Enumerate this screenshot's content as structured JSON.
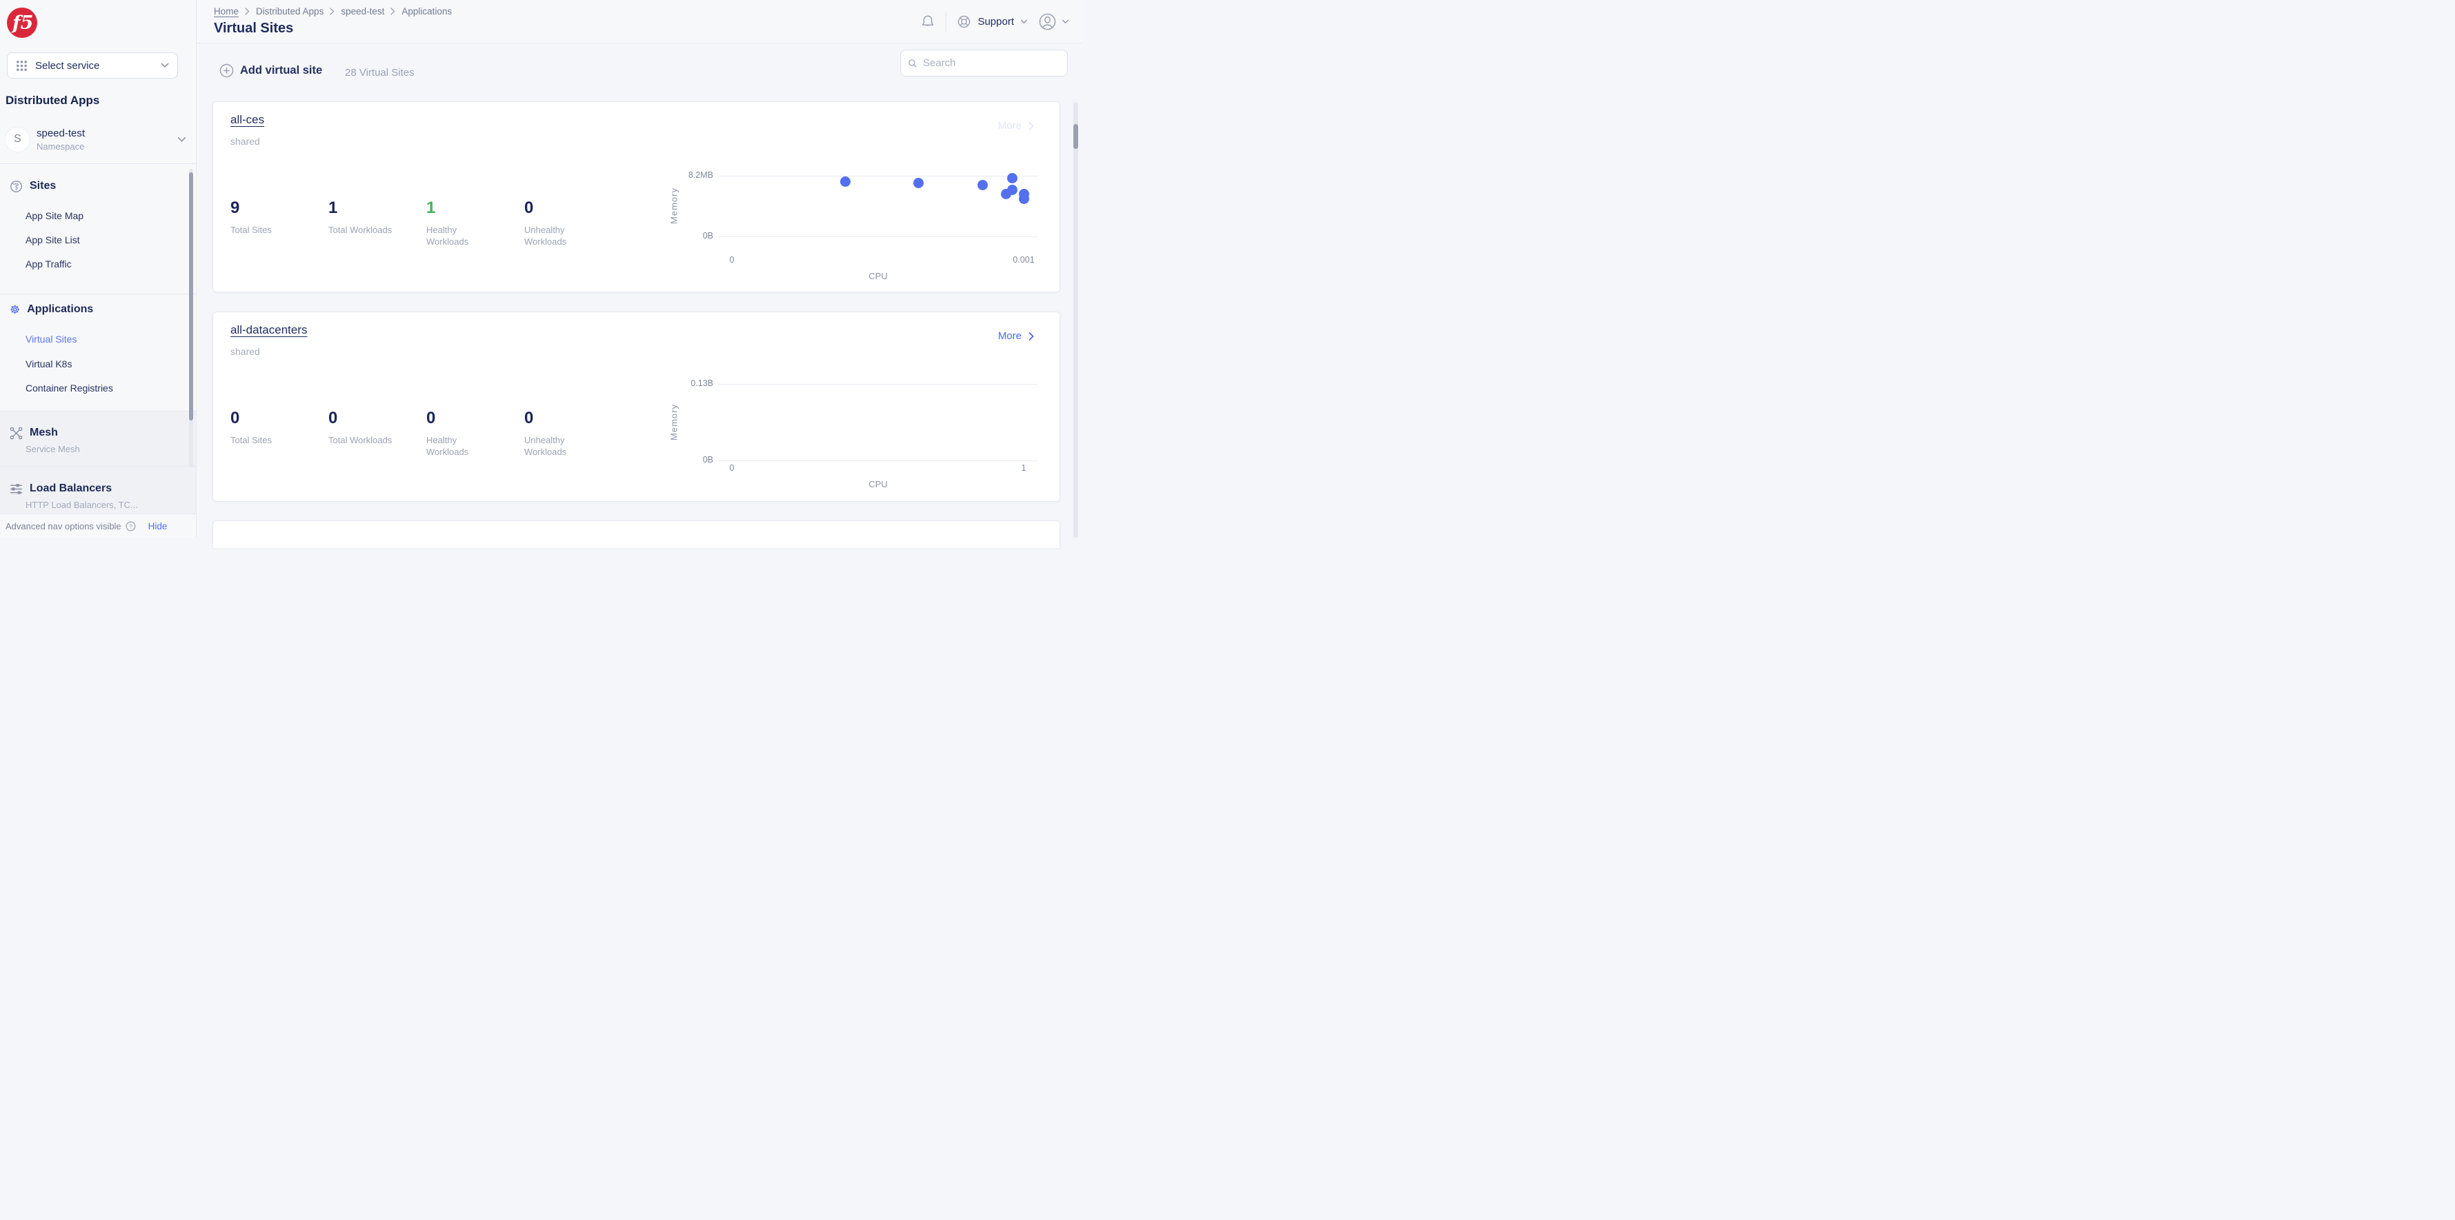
{
  "app": {
    "brand": "f5"
  },
  "sidebar": {
    "select_service_label": "Select service",
    "product_title": "Distributed Apps",
    "namespace": {
      "initial": "S",
      "name": "speed-test",
      "type": "Namespace"
    },
    "sections": {
      "sites": {
        "header": "Sites",
        "items": [
          "App Site Map",
          "App Site List",
          "App Traffic"
        ]
      },
      "applications": {
        "header": "Applications",
        "items": [
          "Virtual Sites",
          "Virtual K8s",
          "Container Registries"
        ],
        "active_item": "Virtual Sites"
      },
      "mesh": {
        "header": "Mesh",
        "subtitle": "Service Mesh"
      },
      "load_balancers": {
        "header": "Load Balancers",
        "subtitle": "HTTP Load Balancers, TC..."
      }
    },
    "footer": {
      "status": "Advanced nav options visible",
      "hide_label": "Hide"
    }
  },
  "header": {
    "breadcrumb": [
      "Home",
      "Distributed Apps",
      "speed-test",
      "Applications"
    ],
    "title": "Virtual Sites",
    "support_label": "Support"
  },
  "toolbar": {
    "add_label": "Add virtual site",
    "count_label": "28 Virtual Sites",
    "search_placeholder": "Search"
  },
  "cards": [
    {
      "title": "all-ces",
      "tag": "shared",
      "more_label": "More",
      "stats": [
        {
          "value": "9",
          "label": "Total Sites",
          "color": "#1b2559"
        },
        {
          "value": "1",
          "label": "Total Workloads",
          "color": "#1b2559"
        },
        {
          "value": "1",
          "label": "Healthy Workloads",
          "color": "#43b35c"
        },
        {
          "value": "0",
          "label": "Unhealthy Workloads",
          "color": "#1b2559"
        }
      ]
    },
    {
      "title": "all-datacenters",
      "tag": "shared",
      "more_label": "More",
      "stats": [
        {
          "value": "0",
          "label": "Total Sites",
          "color": "#1b2559"
        },
        {
          "value": "0",
          "label": "Total Workloads",
          "color": "#1b2559"
        },
        {
          "value": "0",
          "label": "Healthy Workloads",
          "color": "#1b2559"
        },
        {
          "value": "0",
          "label": "Unhealthy Workloads",
          "color": "#1b2559"
        }
      ]
    }
  ],
  "chart_data": [
    {
      "type": "scatter",
      "xlabel": "CPU",
      "ylabel": "Memory",
      "x_ticks": [
        "0",
        "0.001"
      ],
      "y_ticks": [
        "8.2MB",
        "0B"
      ],
      "xlim": [
        0,
        0.001
      ],
      "ylim_labels": [
        "0B",
        "8.2MB"
      ],
      "grid": true,
      "legend": false,
      "point_color": "#5270ef",
      "points": [
        {
          "cpu": 0.00039,
          "memory_mb": 7.4
        },
        {
          "cpu": 0.00064,
          "memory_mb": 7.2
        },
        {
          "cpu": 0.00086,
          "memory_mb": 6.9
        },
        {
          "cpu": 0.00094,
          "memory_mb": 5.7
        },
        {
          "cpu": 0.00096,
          "memory_mb": 6.3
        },
        {
          "cpu": 0.001,
          "memory_mb": 5.7
        },
        {
          "cpu": 0.00096,
          "memory_mb": 7.9
        },
        {
          "cpu": 0.001,
          "memory_mb": 5.1
        }
      ]
    },
    {
      "type": "scatter",
      "xlabel": "CPU",
      "ylabel": "Memory",
      "x_ticks": [
        "0",
        "1"
      ],
      "y_ticks": [
        "0.13B",
        "0B"
      ],
      "xlim": [
        0,
        1
      ],
      "ylim_labels": [
        "0B",
        "0.13B"
      ],
      "grid": true,
      "legend": false,
      "point_color": "#5270ef",
      "points": []
    }
  ]
}
